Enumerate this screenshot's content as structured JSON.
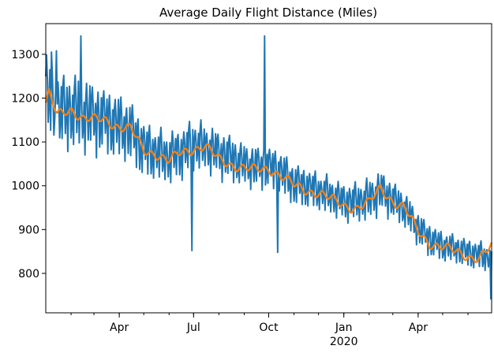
{
  "chart_data": {
    "type": "line",
    "title": "Average Daily Flight Distance (Miles)",
    "xlabel": "",
    "ylabel": "",
    "x_range": [
      "2019-01-01",
      "2020-06-30"
    ],
    "ylim": [
      710,
      1370
    ],
    "yticks": [
      800,
      900,
      1000,
      1100,
      1200,
      1300
    ],
    "xticks": [
      {
        "date": "2019-04-01",
        "label": "Apr"
      },
      {
        "date": "2019-07-01",
        "label": "Jul"
      },
      {
        "date": "2019-10-01",
        "label": "Oct"
      },
      {
        "date": "2020-01-01",
        "label": "Jan"
      },
      {
        "date": "2020-04-01",
        "label": "Apr"
      }
    ],
    "year_label": {
      "date": "2020-01-01",
      "label": "2020"
    },
    "grid": false,
    "legend": "none",
    "colors": {
      "daily": "#1f77b4",
      "rolling": "#ff7f0e"
    },
    "series": [
      {
        "key": "daily",
        "x": [
          "2019-01-01",
          "2019-01-15",
          "2019-02-01",
          "2019-02-15",
          "2019-03-01",
          "2019-03-15",
          "2019-04-01",
          "2019-04-15",
          "2019-05-01",
          "2019-05-15",
          "2019-06-01",
          "2019-06-15",
          "2019-07-01",
          "2019-07-15",
          "2019-08-01",
          "2019-08-15",
          "2019-09-01",
          "2019-09-15",
          "2019-10-01",
          "2019-10-15",
          "2019-11-01",
          "2019-11-15",
          "2019-12-01",
          "2019-12-15",
          "2020-01-01",
          "2020-01-15",
          "2020-02-01",
          "2020-02-15",
          "2020-03-01",
          "2020-03-15",
          "2020-04-01",
          "2020-04-15",
          "2020-05-01",
          "2020-05-15",
          "2020-06-01",
          "2020-06-15",
          "2020-06-30"
        ],
        "center": [
          1200,
          1160,
          1165,
          1160,
          1150,
          1145,
          1130,
          1120,
          1080,
          1070,
          1060,
          1070,
          1090,
          1085,
          1070,
          1060,
          1045,
          1040,
          1040,
          1030,
          1000,
          995,
          985,
          975,
          960,
          960,
          965,
          985,
          965,
          945,
          900,
          875,
          860,
          855,
          845,
          840,
          830
        ],
        "amplitude": [
          90,
          85,
          80,
          80,
          75,
          70,
          70,
          65,
          60,
          55,
          55,
          55,
          55,
          50,
          50,
          50,
          45,
          45,
          45,
          45,
          45,
          42,
          40,
          40,
          40,
          42,
          45,
          45,
          40,
          38,
          35,
          35,
          32,
          30,
          30,
          30,
          30
        ],
        "spikes": [
          {
            "date": "2019-01-08",
            "value": 1305
          },
          {
            "date": "2019-01-14",
            "value": 1308
          },
          {
            "date": "2019-02-13",
            "value": 1342
          },
          {
            "date": "2019-06-29",
            "value": 852
          },
          {
            "date": "2019-09-26",
            "value": 1342
          },
          {
            "date": "2019-10-12",
            "value": 848
          },
          {
            "date": "2020-06-29",
            "value": 742
          }
        ]
      },
      {
        "key": "rolling",
        "x": [
          "2019-01-01",
          "2019-01-05",
          "2019-01-15",
          "2019-02-01",
          "2019-02-15",
          "2019-03-01",
          "2019-03-15",
          "2019-04-01",
          "2019-04-15",
          "2019-05-01",
          "2019-05-15",
          "2019-06-01",
          "2019-06-15",
          "2019-07-01",
          "2019-07-15",
          "2019-08-01",
          "2019-08-15",
          "2019-09-01",
          "2019-09-15",
          "2019-10-01",
          "2019-10-15",
          "2019-11-01",
          "2019-11-15",
          "2019-12-01",
          "2019-12-15",
          "2020-01-01",
          "2020-01-15",
          "2020-02-01",
          "2020-02-15",
          "2020-03-01",
          "2020-03-15",
          "2020-04-01",
          "2020-04-15",
          "2020-05-01",
          "2020-05-15",
          "2020-06-01",
          "2020-06-15",
          "2020-06-30"
        ],
        "y": [
          1190,
          1210,
          1160,
          1175,
          1155,
          1150,
          1150,
          1135,
          1130,
          1080,
          1075,
          1055,
          1075,
          1085,
          1090,
          1060,
          1050,
          1040,
          1035,
          1040,
          1025,
          1000,
          990,
          985,
          970,
          955,
          950,
          960,
          995,
          965,
          950,
          895,
          870,
          860,
          850,
          840,
          835,
          860
        ]
      }
    ]
  }
}
